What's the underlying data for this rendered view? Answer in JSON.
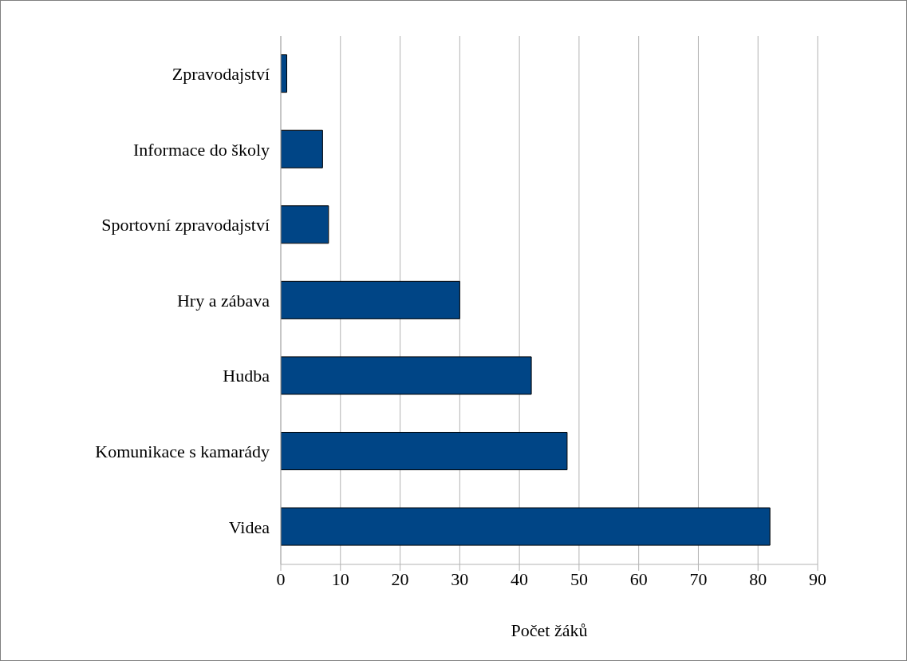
{
  "chart_data": {
    "type": "bar",
    "orientation": "horizontal",
    "xlabel": "Počet žáků",
    "categories": [
      "Zpravodajství",
      "Informace do školy",
      "Sportovní zpravodajství",
      "Hry a zábava",
      "Hudba",
      "Komunikace s kamarády",
      "Videa"
    ],
    "values": [
      1,
      7,
      8,
      30,
      42,
      48,
      82
    ],
    "color": "#004586",
    "xlim": [
      0,
      90
    ],
    "xticks": [
      0,
      10,
      20,
      30,
      40,
      50,
      60,
      70,
      80,
      90
    ],
    "grid": "x"
  }
}
